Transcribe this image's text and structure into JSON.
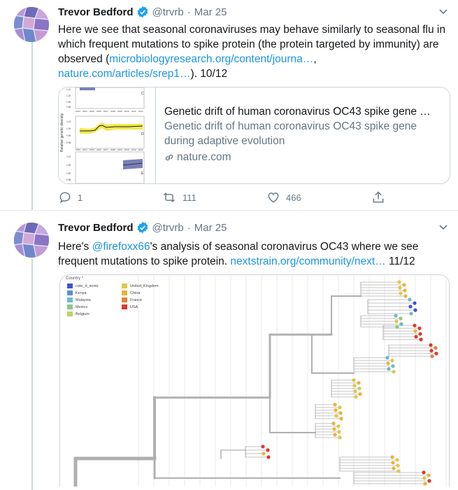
{
  "tweets": [
    {
      "name": "Trevor Bedford",
      "handle": "@trvrb",
      "dot": "·",
      "date": "Mar 25",
      "text_parts": [
        {
          "t": "Here we see that seasonal coronaviruses may behave similarly to seasonal flu in which frequent mutations to spike protein (the protein targeted by immunity) are observed ("
        },
        {
          "t": "microbiologyresearch.org/content/journa…",
          "link": true
        },
        {
          "t": ", "
        },
        {
          "t": "nature.com/articles/srep1…",
          "link": true
        },
        {
          "t": "). 10/12"
        }
      ],
      "card": {
        "title": "Genetic drift of human coronavirus OC43 spike gene …",
        "description": "Genetic drift of human coronavirus OC43 spike gene during adaptive evolution",
        "domain": "nature.com",
        "thumb_ylabel": "Relative genetic diversity",
        "thumb_years": [
          "2003",
          "2004",
          "2005",
          "2006",
          "2007",
          "2008",
          "2009",
          "2010",
          "2011",
          "2012"
        ],
        "thumb_panels": [
          "C",
          "D",
          "E"
        ]
      },
      "actions": {
        "reply": "1",
        "retweet": "111",
        "like": "466"
      }
    },
    {
      "name": "Trevor Bedford",
      "handle": "@trvrb",
      "dot": "·",
      "date": "Mar 25",
      "text_parts": [
        {
          "t": "Here's "
        },
        {
          "t": "@firefoxx66",
          "link": true
        },
        {
          "t": "'s analysis of seasonal coronavirus OC43 where we see frequent mutations to spike protein. "
        },
        {
          "t": "nextstrain.org/community/next…",
          "link": true
        },
        {
          "t": " 11/12"
        }
      ],
      "legend": {
        "title": "Country ^",
        "items": [
          {
            "label": "cote_d_ivoire",
            "color": "#3f51d4"
          },
          {
            "label": "Kenya",
            "color": "#5a8fd8"
          },
          {
            "label": "Malaysia",
            "color": "#6cbcc8"
          },
          {
            "label": "Mexico",
            "color": "#8cc98a"
          },
          {
            "label": "Belgium",
            "color": "#b8d36a"
          },
          {
            "label": "United_Kingdom",
            "color": "#e0c64c"
          },
          {
            "label": "China",
            "color": "#e8b43c"
          },
          {
            "label": "France",
            "color": "#e8803a"
          },
          {
            "label": "USA",
            "color": "#dc3a2e"
          }
        ]
      }
    }
  ],
  "colors": {
    "link": "#1b95e0",
    "muted": "#657786",
    "verified": "#1da1f2"
  }
}
